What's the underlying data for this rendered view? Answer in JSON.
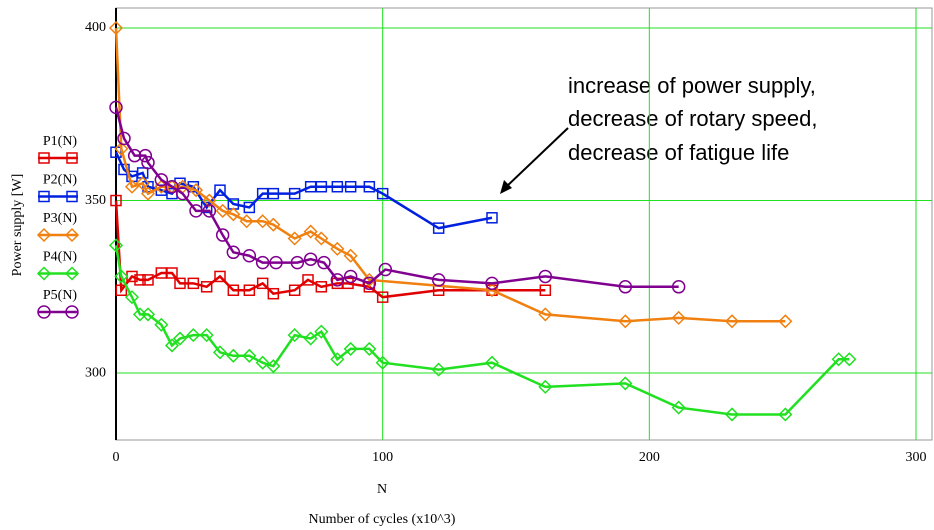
{
  "chart_data": {
    "type": "line",
    "xlabel": "N",
    "xlabel2": "Number of cycles (x10^3)",
    "ylabel": "Power supply [W]",
    "annotation": [
      "increase of power supply,",
      "decrease of rotary speed,",
      "decrease of fatigue life"
    ],
    "xlim": [
      0,
      306
    ],
    "ylim": [
      280.6,
      405.8
    ],
    "xticks": [
      0,
      100,
      200,
      300
    ],
    "yticks": [
      300,
      350,
      400
    ],
    "grid": true,
    "series": [
      {
        "name": "P1(N)",
        "color": "#e00000",
        "marker": "square",
        "x": [
          0,
          2,
          6,
          9,
          12,
          17,
          21,
          24,
          29,
          34,
          39,
          44,
          50,
          55,
          59,
          67,
          72,
          77,
          83,
          87,
          95,
          100,
          121,
          141,
          161
        ],
        "values": [
          350,
          324,
          328,
          327,
          327,
          329,
          329,
          326,
          326,
          325,
          328,
          324,
          324,
          326,
          323,
          324,
          327,
          325,
          326,
          326,
          325,
          322,
          324,
          324,
          324
        ]
      },
      {
        "name": "P2(N)",
        "color": "#0020e0",
        "marker": "square",
        "x": [
          0,
          3,
          6,
          10,
          12,
          17,
          21,
          24,
          29,
          34,
          39,
          44,
          50,
          55,
          59,
          67,
          73,
          77,
          83,
          88,
          95,
          100,
          121,
          141
        ],
        "values": [
          364,
          359,
          357,
          358,
          354,
          353,
          352,
          355,
          354,
          348,
          353,
          349,
          348,
          352,
          352,
          352,
          354,
          354,
          354,
          354,
          354,
          352,
          342,
          345
        ]
      },
      {
        "name": "P3(N)",
        "color": "#f08010",
        "marker": "diamond",
        "x": [
          0,
          2,
          6,
          10,
          12,
          17,
          21,
          25,
          30,
          35,
          40,
          44,
          49,
          55,
          59,
          67,
          73,
          77,
          83,
          88,
          95,
          141,
          161,
          191,
          211,
          231,
          251
        ],
        "values": [
          400,
          365,
          354,
          355,
          352,
          354,
          354,
          354,
          353,
          350,
          347,
          346,
          344,
          344,
          343,
          339,
          341,
          339,
          336,
          334,
          327,
          324,
          317,
          315,
          316,
          315,
          315
        ]
      },
      {
        "name": "P4(N)",
        "color": "#20e020",
        "marker": "diamond",
        "x": [
          0,
          2,
          6,
          9,
          12,
          17,
          21,
          24,
          29,
          34,
          39,
          44,
          50,
          55,
          59,
          67,
          73,
          77,
          83,
          88,
          95,
          100,
          121,
          141,
          161,
          191,
          211,
          231,
          251,
          271,
          275
        ],
        "values": [
          337,
          328,
          322,
          317,
          317,
          314,
          308,
          310,
          311,
          311,
          306,
          305,
          305,
          303,
          302,
          311,
          310,
          312,
          304,
          307,
          307,
          303,
          301,
          303,
          296,
          297,
          290,
          288,
          288,
          304,
          304
        ]
      },
      {
        "name": "P5(N)",
        "color": "#800090",
        "marker": "circle",
        "x": [
          0,
          3,
          7,
          11,
          12,
          17,
          21,
          25,
          30,
          35,
          40,
          44,
          50,
          55,
          60,
          68,
          73,
          78,
          83,
          88,
          95,
          101,
          121,
          141,
          161,
          191,
          211
        ],
        "values": [
          377,
          368,
          363,
          363,
          361,
          356,
          354,
          352,
          347,
          347,
          340,
          335,
          334,
          332,
          332,
          332,
          333,
          332,
          327,
          328,
          326,
          330,
          327,
          326,
          328,
          325,
          325
        ]
      }
    ]
  }
}
